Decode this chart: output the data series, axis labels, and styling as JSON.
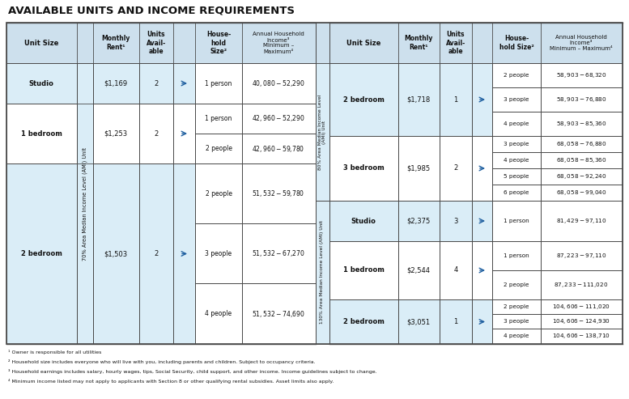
{
  "title": "AVAILABLE UNITS AND INCOME REQUIREMENTS",
  "bg_color": "#ffffff",
  "header_bg": "#cde0ed",
  "cell_lt": "#daedf7",
  "cell_wh": "#ffffff",
  "border_color": "#4a4a4a",
  "arrow_color": "#2060a0",
  "footnotes": [
    "¹ Owner is responsible for all utilities",
    "² Household size includes everyone who will live with you, including parents and children. Subject to occupancy criteria.",
    "³ Household earnings includes salary, hourly wages, tips, Social Security, child support, and other income. Income guidelines subject to change.",
    "⁴ Minimum income listed may not apply to applicants with Section 8 or other qualifying rental subsidies. Asset limits also apply."
  ]
}
